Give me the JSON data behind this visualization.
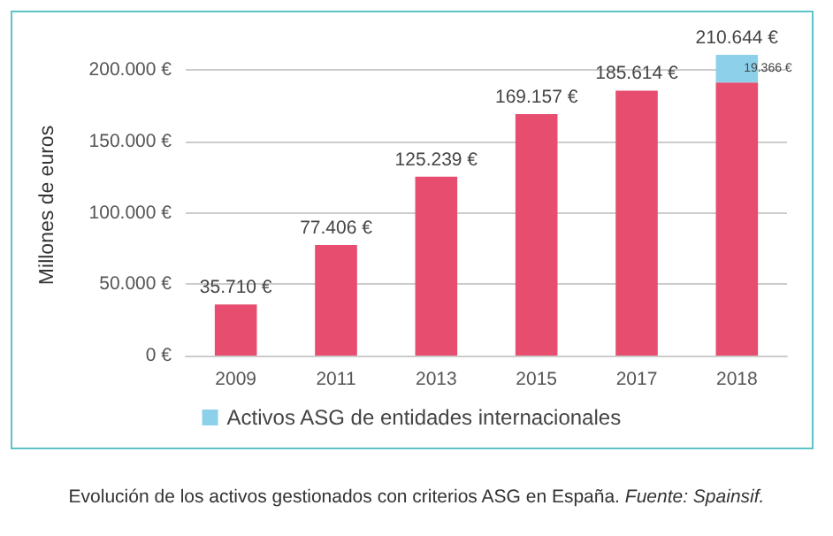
{
  "chart_data": {
    "type": "bar",
    "stacked": true,
    "categories": [
      "2009",
      "2011",
      "2013",
      "2015",
      "2017",
      "2018"
    ],
    "ylabel": "Millones de euros",
    "ylim": [
      0,
      210644
    ],
    "yticks": [
      {
        "value": 0,
        "label": "0 €"
      },
      {
        "value": 50000,
        "label": "50.000 €"
      },
      {
        "value": 100000,
        "label": "100.000 €"
      },
      {
        "value": 150000,
        "label": "150.000 €"
      },
      {
        "value": 200000,
        "label": "200.000 €"
      }
    ],
    "series": [
      {
        "color": "#e64d6e",
        "values": [
          35710,
          77406,
          125239,
          169157,
          185614,
          191278
        ],
        "value_labels": [
          "35.710 €",
          "77.406 €",
          "125.239 €",
          "169.157 €",
          "185.614 €",
          null
        ]
      },
      {
        "name": "Activos ASG de entidades internacionales",
        "color": "#8dd0ea",
        "values": [
          null,
          null,
          null,
          null,
          null,
          19366
        ],
        "value_labels": [
          null,
          null,
          null,
          null,
          null,
          "19.366 €"
        ]
      }
    ],
    "totals": [
      null,
      null,
      null,
      null,
      null,
      "210.644 €"
    ],
    "grid": "y",
    "legend": "bottom",
    "annotations": [
      "Evolución de los activos gestionados con criterios ASG en España.",
      "Fuente: Spainsif."
    ]
  }
}
